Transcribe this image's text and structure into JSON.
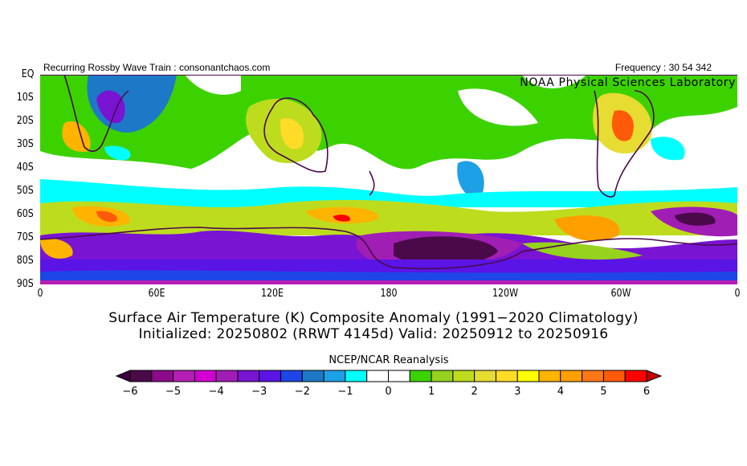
{
  "header": {
    "left_text": "Recurring Rossby Wave Train : consonantchaos.com",
    "right_text": "Frequency : 30 54 342",
    "lab": "NOAA Physical Sciences Laboratory"
  },
  "axes": {
    "lat_ticks": [
      "EQ",
      "10S",
      "20S",
      "30S",
      "40S",
      "50S",
      "60S",
      "70S",
      "80S",
      "90S"
    ],
    "lon_ticks": [
      "0",
      "60E",
      "120E",
      "180",
      "120W",
      "60W",
      "0"
    ]
  },
  "title": {
    "line1": "Surface Air Temperature (K) Composite Anomaly (1991−2020 Climatology)",
    "line2": "Initialized: 20250802 (RRWT 4145d) Valid: 20250912 to 20250916"
  },
  "colorbar": {
    "title": "NCEP/NCAR Reanalysis",
    "labels": [
      "−6",
      "−5",
      "−4",
      "−3",
      "−2",
      "−1",
      "0",
      "1",
      "2",
      "3",
      "4",
      "5",
      "6"
    ],
    "range": [
      -6,
      6
    ],
    "step": 0.5,
    "under_color": "#3c003c",
    "over_color": "#c80000",
    "colors": [
      "#4a0a4a",
      "#8c0a8c",
      "#b41eb4",
      "#d200d2",
      "#a01eb4",
      "#7814d2",
      "#5a14e6",
      "#1e46e6",
      "#1e78c8",
      "#1ea0e6",
      "#00ffff",
      "#ffffff",
      "#ffffff",
      "#3cd200",
      "#96d21e",
      "#bedc1e",
      "#e6dc32",
      "#ffdc28",
      "#ffff00",
      "#ffb400",
      "#ffa000",
      "#ff7814",
      "#ff5a0a",
      "#ff0000"
    ]
  }
}
